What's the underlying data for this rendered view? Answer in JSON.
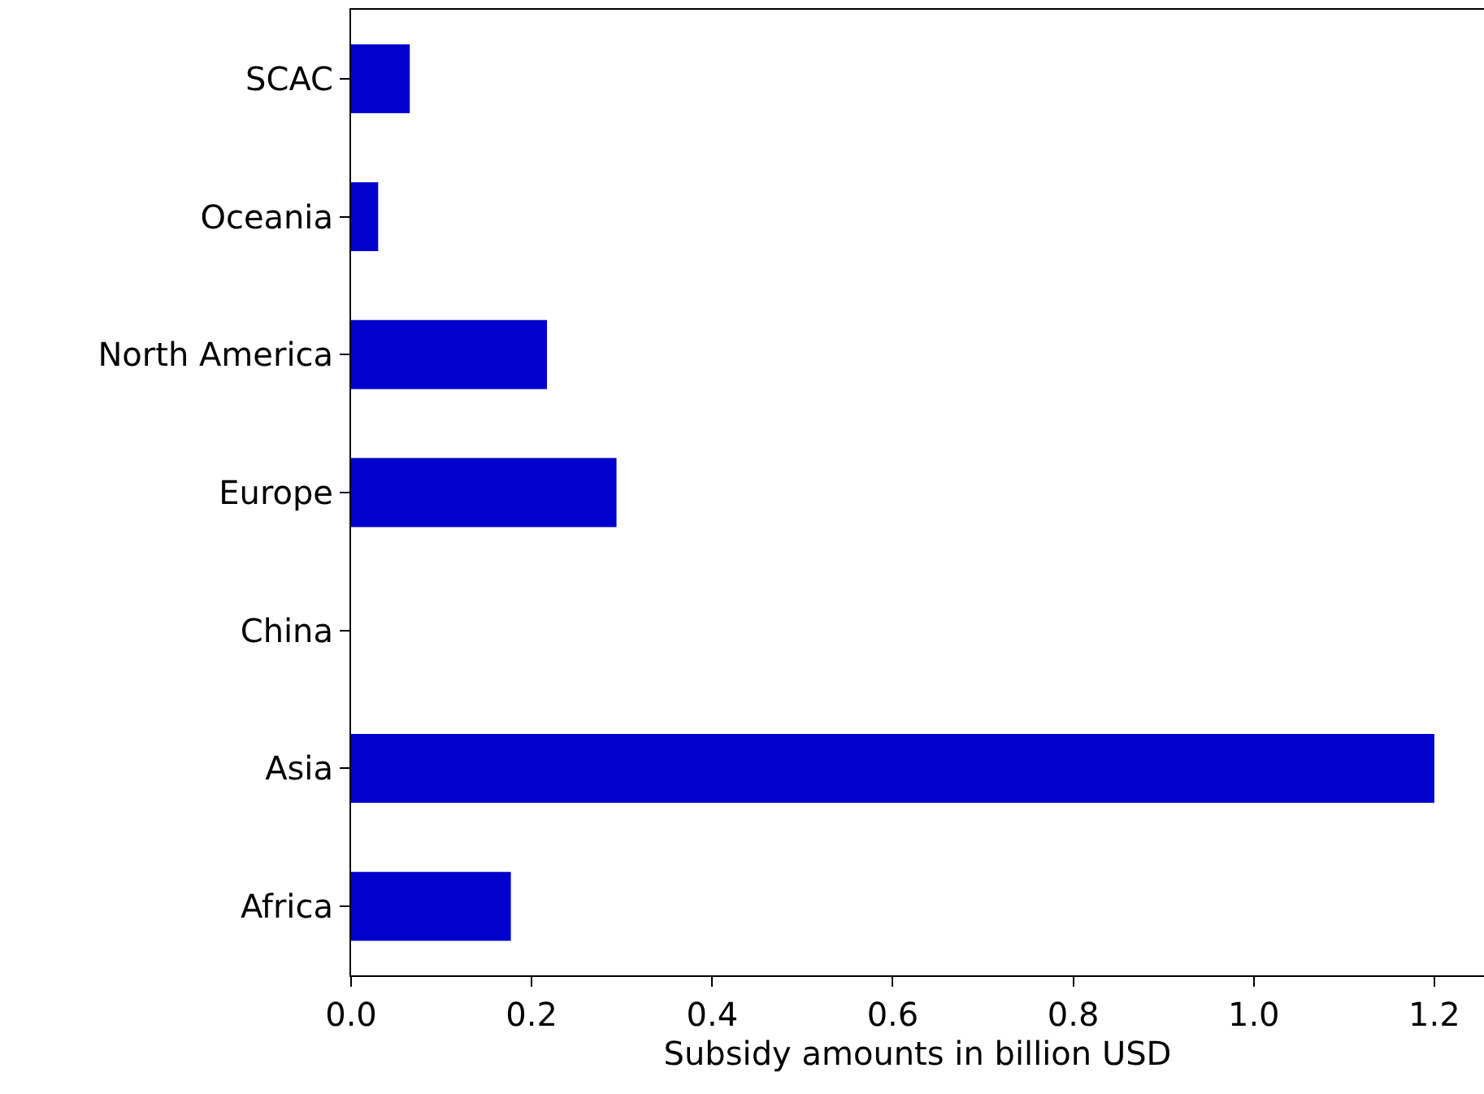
{
  "chart_data": {
    "type": "bar",
    "orientation": "horizontal",
    "categories": [
      "SCAC",
      "Oceania",
      "North America",
      "Europe",
      "China",
      "Asia",
      "Africa"
    ],
    "values": [
      0.065,
      0.03,
      0.217,
      0.294,
      0,
      1.2,
      0.177
    ],
    "color": "#0000cc",
    "xlabel": "Subsidy amounts in billion USD",
    "xlim": [
      0,
      1.255
    ],
    "xticks": [
      {
        "value": 0,
        "label": "0.0"
      },
      0.2,
      0.4,
      0.6,
      0.8,
      {
        "value": 1,
        "label": "1.0"
      },
      1.2
    ],
    "grid": false
  }
}
